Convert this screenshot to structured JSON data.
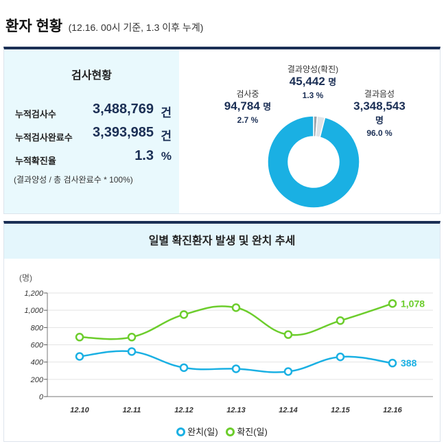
{
  "header": {
    "title": "환자 현황",
    "subtitle": "(12.16. 00시 기준, 1.3 이후 누계)"
  },
  "testing": {
    "title": "검사현황",
    "rows": [
      {
        "label": "누적검사수",
        "value": "3,488,769",
        "unit": "건"
      },
      {
        "label": "누적검사완료수",
        "value": "3,393,985",
        "unit": "건"
      },
      {
        "label": "누적확진율",
        "value": "1.3",
        "unit": "%"
      }
    ],
    "note": "(결과양성 / 총 검사완료수 * 100%)"
  },
  "donut": {
    "colors": {
      "negative": "#1ab0e3",
      "testing": "#dfe4e8",
      "positive": "#9aa4ad"
    },
    "segments": [
      {
        "key": "positive",
        "name": "결과양성(확진)",
        "value": "45,442",
        "unit": "명",
        "pct": "1.3 %",
        "fraction": 0.013
      },
      {
        "key": "testing",
        "name": "검사중",
        "value": "94,784",
        "unit": "명",
        "pct": "2.7 %",
        "fraction": 0.027
      },
      {
        "key": "negative",
        "name": "결과음성",
        "value": "3,348,543",
        "unit": "명",
        "pct": "96.0 %",
        "fraction": 0.96
      }
    ]
  },
  "chart_data": {
    "type": "line",
    "title": "일별 확진환자 발생 및 완치 추세",
    "ylabel": "(명)",
    "ylim": [
      0,
      1200
    ],
    "yticks": [
      "0",
      "200",
      "400",
      "600",
      "800",
      "1,000",
      "1,200"
    ],
    "categories": [
      "12.10",
      "12.11",
      "12.12",
      "12.13",
      "12.14",
      "12.15",
      "12.16"
    ],
    "grid": true,
    "legend": "bottom",
    "series": [
      {
        "name": "완치(일)",
        "color": "#1ab0e3",
        "values": [
          465,
          522,
          335,
          322,
          290,
          460,
          388
        ],
        "end_label": "388"
      },
      {
        "name": "확진(일)",
        "color": "#6ccd2c",
        "values": [
          689,
          689,
          950,
          1030,
          718,
          880,
          1078
        ],
        "end_label": "1,078"
      }
    ]
  }
}
